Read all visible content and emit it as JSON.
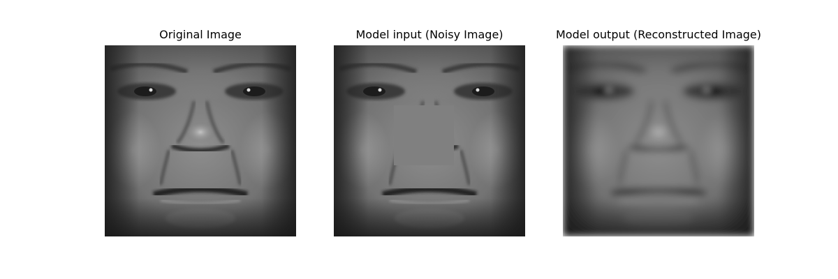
{
  "panels": [
    {
      "id": "original",
      "title": "Original Image"
    },
    {
      "id": "noisy",
      "title": "Model input (Noisy Image)",
      "occlusion_fill": "#808080"
    },
    {
      "id": "reconstructed",
      "title": "Model output (Reconstructed Image)"
    }
  ],
  "colors": {
    "background": "#ffffff",
    "title_text": "#000000"
  }
}
